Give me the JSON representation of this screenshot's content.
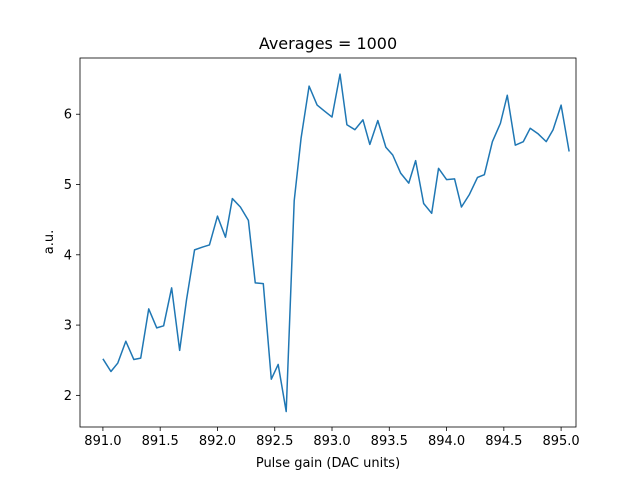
{
  "chart_data": {
    "type": "line",
    "title": "Averages = 1000",
    "xlabel": "Pulse gain (DAC units)",
    "ylabel": "a.u.",
    "xlim": [
      890.8,
      895.13
    ],
    "ylim": [
      1.55,
      6.8
    ],
    "xticks": [
      891.0,
      891.5,
      892.0,
      892.5,
      893.0,
      893.5,
      894.0,
      894.5,
      895.0
    ],
    "xtick_labels": [
      "891.0",
      "891.5",
      "892.0",
      "892.5",
      "893.0",
      "893.5",
      "894.0",
      "894.5",
      "895.0"
    ],
    "yticks": [
      2,
      3,
      4,
      5,
      6
    ],
    "ytick_labels": [
      "2",
      "3",
      "4",
      "5",
      "6"
    ],
    "grid": false,
    "color": "#1f77b4",
    "series": [
      {
        "x": [
          891.0,
          891.07,
          891.13,
          891.2,
          891.27,
          891.33,
          891.4,
          891.47,
          891.53,
          891.6,
          891.67,
          891.73,
          891.8,
          891.87,
          891.93,
          892.0,
          892.07,
          892.13,
          892.2,
          892.27,
          892.33,
          892.4,
          892.47,
          892.53,
          892.6,
          892.67,
          892.73,
          892.8,
          892.87,
          892.93,
          893.0,
          893.07,
          893.13,
          893.2,
          893.27,
          893.33,
          893.4,
          893.47,
          893.53,
          893.6,
          893.67,
          893.73,
          893.8,
          893.87,
          893.93,
          894.0,
          894.07,
          894.13,
          894.2,
          894.27,
          894.33,
          894.4,
          894.47,
          894.53,
          894.6,
          894.67,
          894.73,
          894.8,
          894.87,
          894.93,
          895.0,
          895.07
        ],
        "y": [
          2.52,
          2.34,
          2.46,
          2.77,
          2.51,
          2.53,
          3.23,
          2.96,
          2.99,
          3.53,
          2.64,
          3.36,
          4.07,
          4.11,
          4.14,
          4.55,
          4.25,
          4.8,
          4.68,
          4.49,
          3.6,
          3.59,
          2.23,
          2.44,
          1.77,
          4.77,
          5.66,
          6.4,
          6.13,
          6.05,
          5.96,
          6.57,
          5.85,
          5.78,
          5.92,
          5.57,
          5.91,
          5.53,
          5.42,
          5.16,
          5.02,
          5.34,
          4.73,
          4.59,
          5.23,
          5.07,
          5.08,
          4.68,
          4.86,
          5.1,
          5.14,
          5.61,
          5.87,
          6.27,
          5.56,
          5.61,
          5.8,
          5.72,
          5.61,
          5.78,
          6.13,
          5.47
        ]
      }
    ]
  }
}
